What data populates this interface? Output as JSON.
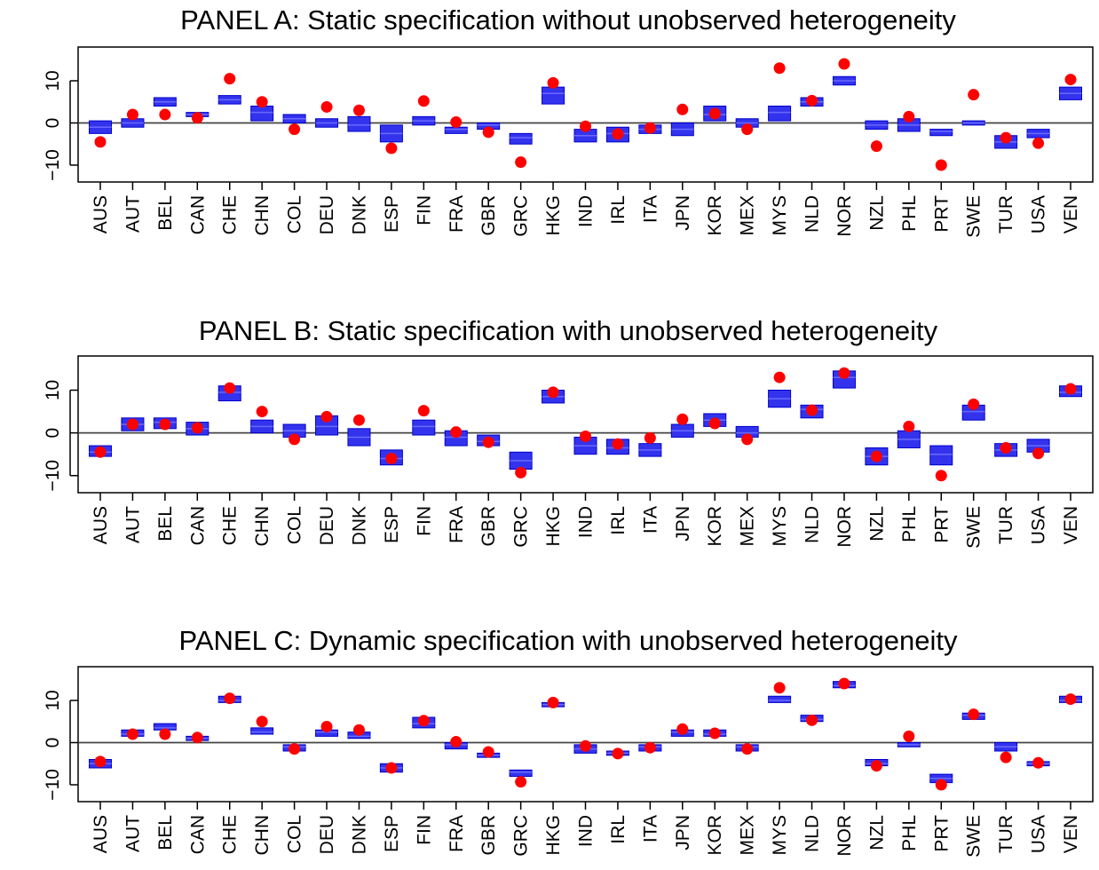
{
  "chart_data": [
    {
      "type": "box",
      "title": "PANEL A: Static specification without unobserved heterogeneity",
      "xlabel": "",
      "ylabel": "",
      "ylim": [
        -14,
        18
      ],
      "yticks": [
        -10,
        0,
        10
      ],
      "ytick_labels": [
        "−10",
        "0",
        "10"
      ],
      "reference_line": 0,
      "grid": false,
      "categories": [
        "AUS",
        "AUT",
        "BEL",
        "CAN",
        "CHE",
        "CHN",
        "COL",
        "DEU",
        "DNK",
        "ESP",
        "FIN",
        "FRA",
        "GBR",
        "GRC",
        "HKG",
        "IND",
        "IRL",
        "ITA",
        "JPN",
        "KOR",
        "MEX",
        "MYS",
        "NLD",
        "NOR",
        "NZL",
        "PHL",
        "PRT",
        "SWE",
        "TUR",
        "USA",
        "VEN"
      ],
      "boxes": [
        [
          -2.5,
          -1,
          0.5
        ],
        [
          -1,
          0,
          1
        ],
        [
          4,
          5,
          6
        ],
        [
          1.5,
          2,
          2.5
        ],
        [
          4.5,
          5.5,
          6.5
        ],
        [
          0.5,
          2.5,
          4
        ],
        [
          0,
          1,
          2
        ],
        [
          -1,
          0,
          1
        ],
        [
          -2,
          -0.5,
          1.5
        ],
        [
          -4.5,
          -2.5,
          -0.5
        ],
        [
          -0.5,
          0.5,
          1.5
        ],
        [
          -2.5,
          -1.5,
          -1
        ],
        [
          -1.5,
          -0.5,
          0
        ],
        [
          -5,
          -3.5,
          -2.5
        ],
        [
          4.5,
          7,
          8.5
        ],
        [
          -4.5,
          -3,
          -1.5
        ],
        [
          -4.5,
          -2.5,
          -1
        ],
        [
          -2.5,
          -1.5,
          -0.5
        ],
        [
          -3,
          -1.5,
          0
        ],
        [
          0.5,
          2,
          4
        ],
        [
          -1,
          0,
          1
        ],
        [
          0.5,
          2.5,
          4
        ],
        [
          4,
          5,
          6
        ],
        [
          9,
          10,
          11
        ],
        [
          -1.5,
          -0.5,
          0.5
        ],
        [
          -2,
          -0.5,
          1
        ],
        [
          -3,
          -2,
          -1.5
        ],
        [
          -0.5,
          0,
          0.5
        ],
        [
          -6,
          -4.5,
          -3
        ],
        [
          -3.5,
          -2.5,
          -1.5
        ],
        [
          5.5,
          7,
          8.5
        ]
      ],
      "points": [
        -4.5,
        2,
        2,
        1.2,
        10.5,
        5,
        -1.5,
        3.8,
        3,
        -6,
        5.2,
        0.2,
        -2.2,
        -9.3,
        9.5,
        -0.8,
        -2.6,
        -1.2,
        3.2,
        2.2,
        -1.5,
        13,
        5.3,
        14,
        -5.5,
        1.5,
        -10,
        6.7,
        -3.5,
        -4.8,
        10.3
      ],
      "legend": null
    },
    {
      "type": "box",
      "title": "PANEL B: Static specification with unobserved heterogeneity",
      "xlabel": "",
      "ylabel": "",
      "ylim": [
        -14,
        18
      ],
      "yticks": [
        -10,
        0,
        10
      ],
      "ytick_labels": [
        "−10",
        "0",
        "10"
      ],
      "reference_line": 0,
      "grid": false,
      "categories": [
        "AUS",
        "AUT",
        "BEL",
        "CAN",
        "CHE",
        "CHN",
        "COL",
        "DEU",
        "DNK",
        "ESP",
        "FIN",
        "FRA",
        "GBR",
        "GRC",
        "HKG",
        "IND",
        "IRL",
        "ITA",
        "JPN",
        "KOR",
        "MEX",
        "MYS",
        "NLD",
        "NOR",
        "NZL",
        "PHL",
        "PRT",
        "SWE",
        "TUR",
        "USA",
        "VEN"
      ],
      "boxes": [
        [
          -5.5,
          -4.5,
          -3
        ],
        [
          0.5,
          2,
          3.5
        ],
        [
          1,
          2.5,
          3.5
        ],
        [
          -0.5,
          1,
          2.5
        ],
        [
          7.5,
          9.5,
          11
        ],
        [
          0,
          1.5,
          3
        ],
        [
          -1,
          0.5,
          2
        ],
        [
          -0.5,
          1.5,
          4
        ],
        [
          -3,
          -1,
          1
        ],
        [
          -7.5,
          -6,
          -4
        ],
        [
          -0.5,
          1.5,
          3
        ],
        [
          -3,
          -1,
          0.5
        ],
        [
          -3,
          -2,
          -0.5
        ],
        [
          -8.5,
          -6.5,
          -4.5
        ],
        [
          7,
          8.5,
          10
        ],
        [
          -5,
          -3,
          -1
        ],
        [
          -5,
          -3.5,
          -1.5
        ],
        [
          -5.5,
          -4,
          -2.5
        ],
        [
          -1,
          0.5,
          2
        ],
        [
          1.5,
          3,
          4.5
        ],
        [
          -1,
          0,
          1.5
        ],
        [
          6,
          8,
          10
        ],
        [
          3.5,
          5.5,
          6.5
        ],
        [
          10.5,
          13,
          14.5
        ],
        [
          -7.5,
          -5.5,
          -3.5
        ],
        [
          -3.5,
          -1.5,
          0.5
        ],
        [
          -7.5,
          -5,
          -3
        ],
        [
          3,
          5,
          6.5
        ],
        [
          -5.5,
          -4,
          -2.5
        ],
        [
          -4.5,
          -3,
          -1.5
        ],
        [
          8.5,
          9.5,
          11
        ]
      ],
      "points": [
        -4.5,
        2,
        2,
        1.2,
        10.5,
        5,
        -1.5,
        3.8,
        3,
        -6,
        5.2,
        0.2,
        -2.2,
        -9.3,
        9.5,
        -0.8,
        -2.6,
        -1.2,
        3.2,
        2.2,
        -1.5,
        13,
        5.3,
        14,
        -5.5,
        1.5,
        -10,
        6.7,
        -3.5,
        -4.8,
        10.3
      ],
      "legend": null
    },
    {
      "type": "box",
      "title": "PANEL C: Dynamic specification with unobserved heterogeneity",
      "xlabel": "",
      "ylabel": "",
      "ylim": [
        -14,
        18
      ],
      "yticks": [
        -10,
        0,
        10
      ],
      "ytick_labels": [
        "−10",
        "0",
        "10"
      ],
      "reference_line": 0,
      "grid": false,
      "categories": [
        "AUS",
        "AUT",
        "BEL",
        "CAN",
        "CHE",
        "CHN",
        "COL",
        "DEU",
        "DNK",
        "ESP",
        "FIN",
        "FRA",
        "GBR",
        "GRC",
        "HKG",
        "IND",
        "IRL",
        "ITA",
        "JPN",
        "KOR",
        "MEX",
        "MYS",
        "NLD",
        "NOR",
        "NZL",
        "PHL",
        "PRT",
        "SWE",
        "TUR",
        "USA",
        "VEN"
      ],
      "boxes": [
        [
          -6,
          -5,
          -4
        ],
        [
          1.5,
          2,
          3
        ],
        [
          3,
          3.5,
          4.5
        ],
        [
          0.5,
          1,
          1.5
        ],
        [
          9.5,
          10,
          11
        ],
        [
          2,
          2.5,
          3.5
        ],
        [
          -2,
          -1,
          -0.5
        ],
        [
          1.5,
          2.5,
          3
        ],
        [
          1,
          1.5,
          2.5
        ],
        [
          -7,
          -6,
          -5
        ],
        [
          3.5,
          4.5,
          6
        ],
        [
          -1.5,
          -0.5,
          0
        ],
        [
          -3.5,
          -3,
          -2.5
        ],
        [
          -8,
          -7,
          -6.5
        ],
        [
          8.5,
          9,
          9.5
        ],
        [
          -2.5,
          -1.5,
          -0.5
        ],
        [
          -3,
          -2.5,
          -2
        ],
        [
          -2,
          -1,
          -0.5
        ],
        [
          1.5,
          2.5,
          3
        ],
        [
          1.5,
          2,
          3
        ],
        [
          -2,
          -1,
          -0.5
        ],
        [
          9.5,
          10,
          11
        ],
        [
          5,
          5.5,
          6.5
        ],
        [
          13,
          13.5,
          14.5
        ],
        [
          -5.5,
          -5,
          -4
        ],
        [
          -1,
          -0.5,
          0
        ],
        [
          -9.5,
          -8.5,
          -7.5
        ],
        [
          5.5,
          6.5,
          7
        ],
        [
          -2,
          -1,
          0
        ],
        [
          -5.5,
          -5,
          -4.5
        ],
        [
          9.5,
          10,
          11
        ]
      ],
      "points": [
        -4.5,
        2,
        2,
        1.2,
        10.5,
        5,
        -1.5,
        3.8,
        3,
        -6,
        5.2,
        0.2,
        -2.2,
        -9.3,
        9.5,
        -0.8,
        -2.6,
        -1.2,
        3.2,
        2.2,
        -1.5,
        13,
        5.3,
        14,
        -5.5,
        1.5,
        -10,
        6.7,
        -3.5,
        -4.8,
        10.3
      ],
      "legend": null
    }
  ],
  "colors": {
    "box_fill": "#3333ee",
    "box_line": "#0000cc",
    "point": "#ff0000",
    "axis": "#000000",
    "reference_line": "#444444"
  }
}
